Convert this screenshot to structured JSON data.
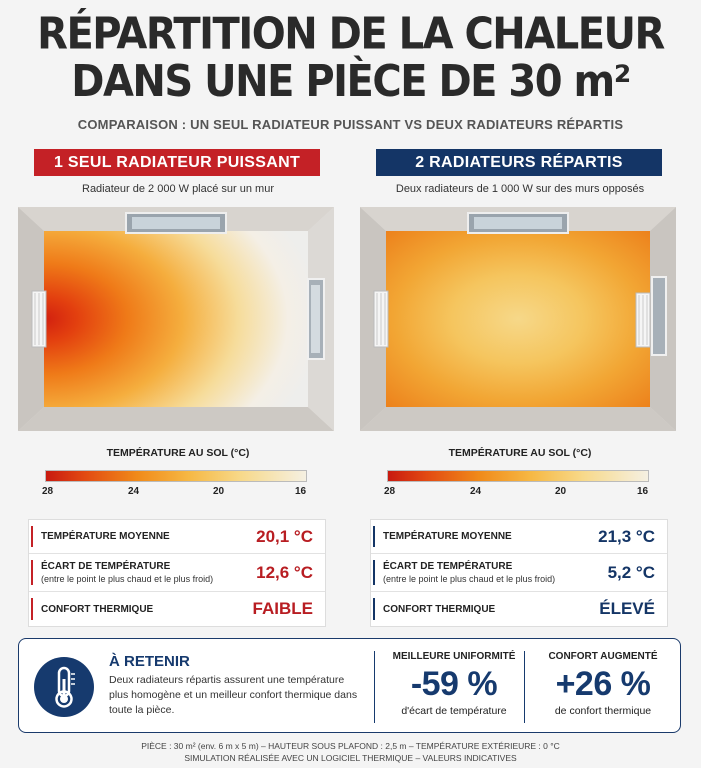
{
  "title": {
    "line1": "RÉPARTITION DE LA CHALEUR",
    "line2": "DANS UNE PIÈCE DE 30 m²"
  },
  "subtitle": "COMPARAISON : UN SEUL RADIATEUR PUISSANT VS DEUX RADIATEURS RÉPARTIS",
  "left": {
    "banner": "1 SEUL RADIATEUR PUISSANT",
    "desc": "Radiateur de 2 000 W placé sur un mur",
    "legend_title": "TEMPÉRATURE AU SOL (°C)",
    "ticks": [
      "28",
      "24",
      "20",
      "16"
    ],
    "stats": [
      {
        "label": "TEMPÉRATURE MOYENNE",
        "sub": "",
        "value": "20,1 °C"
      },
      {
        "label": "ÉCART DE TEMPÉRATURE",
        "sub": "(entre le point le plus chaud et le plus froid)",
        "value": "12,6 °C"
      },
      {
        "label": "CONFORT THERMIQUE",
        "sub": "",
        "value": "FAIBLE"
      }
    ]
  },
  "right": {
    "banner": "2 RADIATEURS RÉPARTIS",
    "desc": "Deux radiateurs de 1 000 W sur des murs opposés",
    "legend_title": "TEMPÉRATURE AU SOL (°C)",
    "ticks": [
      "28",
      "24",
      "20",
      "16"
    ],
    "stats": [
      {
        "label": "TEMPÉRATURE MOYENNE",
        "sub": "",
        "value": "21,3 °C"
      },
      {
        "label": "ÉCART DE TEMPÉRATURE",
        "sub": "(entre le point le plus chaud et le plus froid)",
        "value": "5,2 °C"
      },
      {
        "label": "CONFORT THERMIQUE",
        "sub": "",
        "value": "ÉLEVÉ"
      }
    ]
  },
  "retenir": {
    "title": "À RETENIR",
    "text": "Deux radiateurs répartis assurent une température plus homogène et un meilleur confort thermique dans toute la pièce.",
    "metric1": {
      "title": "MEILLEURE UNIFORMITÉ",
      "value": "-59 %",
      "sub": "d'écart de température"
    },
    "metric2": {
      "title": "CONFORT AUGMENTÉ",
      "value": "+26 %",
      "sub": "de confort thermique"
    }
  },
  "footer": {
    "line1": "PIÈCE : 30 m² (env. 6 m x 5 m) – HAUTEUR SOUS PLAFOND : 2,5 m – TEMPÉRATURE EXTÉRIEURE : 0 °C",
    "line2": "SIMULATION RÉALISÉE AVEC UN LOGICIEL THERMIQUE – VALEURS INDICATIVES"
  },
  "colors": {
    "red_accent": "#c42126",
    "navy_accent": "#143566",
    "hot": "#c81a10",
    "cold": "#f5f0e2"
  },
  "icons": [
    "thermometer-icon",
    "radiator-icon",
    "window-icon"
  ]
}
